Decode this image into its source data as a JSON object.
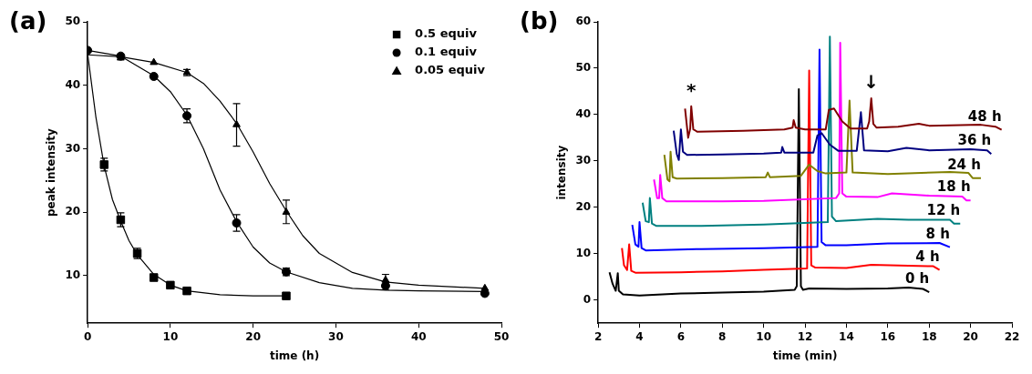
{
  "chart_data": [
    {
      "type": "scatter",
      "title": "(a)",
      "xlabel": "time (h)",
      "ylabel": "peak intensity",
      "xlim": [
        0,
        50
      ],
      "xticks": [
        0,
        10,
        20,
        30,
        40,
        50
      ],
      "ylim": [
        2.5,
        50
      ],
      "yticks": [
        10,
        20,
        30,
        40,
        50
      ],
      "grid": false,
      "legend": "top right",
      "series": [
        {
          "name": "0.5 equiv",
          "type": "scatter",
          "marker": "square",
          "color": "#000000",
          "x": [
            2,
            4,
            6,
            8,
            10,
            12,
            24
          ],
          "values": [
            27.5,
            18.8,
            13.5,
            9.7,
            8.5,
            7.6,
            6.8
          ],
          "errors": [
            1.0,
            1.1,
            0.8,
            null,
            null,
            null,
            null
          ]
        },
        {
          "name": "0.1 equiv",
          "type": "scatter",
          "marker": "circle",
          "color": "#000000",
          "x": [
            0,
            4,
            8,
            12,
            18,
            24,
            36,
            48
          ],
          "values": [
            45.5,
            44.6,
            41.4,
            35.2,
            18.3,
            10.6,
            8.4,
            7.2
          ],
          "errors": [
            null,
            null,
            null,
            1.1,
            1.3,
            0.6,
            0.6,
            null
          ]
        },
        {
          "name": "0.05 equiv",
          "type": "scatter",
          "marker": "triangle",
          "color": "#000000",
          "x": [
            4,
            8,
            12,
            18,
            24,
            36,
            48
          ],
          "values": [
            44.3,
            43.6,
            42.0,
            33.8,
            20.0,
            9.3,
            8.0
          ],
          "errors": [
            null,
            null,
            0.5,
            [
              30.4,
              37.1
            ],
            [
              18.2,
              21.9
            ],
            0.9,
            null
          ]
        },
        {
          "type": "line",
          "marker": "none",
          "color": "#000000",
          "x": [
            0,
            1,
            2,
            3,
            4,
            5,
            6,
            8,
            10,
            12,
            16,
            20,
            24
          ],
          "values": [
            45,
            35,
            27.3,
            22,
            18.6,
            15.5,
            13.3,
            10.2,
            8.5,
            7.6,
            7.0,
            6.8,
            6.8
          ]
        },
        {
          "type": "line",
          "marker": "none",
          "color": "#000000",
          "x": [
            0,
            4,
            8,
            10,
            12,
            14,
            16,
            18,
            20,
            22,
            24,
            28,
            32,
            36,
            40,
            48
          ],
          "values": [
            45.5,
            44.6,
            41.5,
            39,
            35.3,
            30,
            23.5,
            18.5,
            14.5,
            12,
            10.6,
            8.9,
            8.0,
            7.7,
            7.6,
            7.5
          ]
        },
        {
          "type": "line",
          "marker": "none",
          "color": "#000000",
          "x": [
            0,
            4,
            8,
            12,
            14,
            16,
            18,
            20,
            22,
            24,
            26,
            28,
            32,
            36,
            40,
            48
          ],
          "values": [
            44.8,
            44.5,
            43.6,
            42.0,
            40.3,
            37.5,
            34,
            29.5,
            24.5,
            20.2,
            16.3,
            13.5,
            10.5,
            9.0,
            8.5,
            8.0
          ]
        }
      ]
    },
    {
      "type": "line",
      "title": "(b)",
      "xlabel": "time (min)",
      "ylabel": "intensity",
      "xlim": [
        2,
        22
      ],
      "xticks": [
        2,
        4,
        6,
        8,
        10,
        12,
        14,
        16,
        18,
        20,
        22
      ],
      "ylim": [
        -5,
        60
      ],
      "yticks": [
        0,
        10,
        20,
        30,
        40,
        50,
        60
      ],
      "grid": false,
      "legend": false,
      "marker": "none",
      "annotations": [
        {
          "text": "*",
          "x": 6.5,
          "y": 41.8
        },
        {
          "text": "↓",
          "x": 15.2,
          "y": 43.5
        }
      ],
      "series": [
        {
          "name": "0 h",
          "color": "#000000",
          "x": [
            2.55,
            2.7,
            2.85,
            2.95,
            3.0,
            3.2,
            4,
            6,
            8,
            10,
            11.5,
            11.6,
            11.7,
            11.8,
            11.9,
            12.2,
            14,
            16,
            17,
            17.7,
            18.0
          ],
          "values": [
            6,
            3.5,
            2.0,
            5.8,
            2,
            1.2,
            1.0,
            1.4,
            1.6,
            1.8,
            2.2,
            3,
            45.5,
            3,
            2.2,
            2.5,
            2.4,
            2.5,
            2.7,
            2.4,
            1.7
          ]
        },
        {
          "name": "4 h",
          "color": "#ff0000",
          "x": [
            3.15,
            3.25,
            3.4,
            3.5,
            3.6,
            3.8,
            6,
            8,
            10,
            12.1,
            12.2,
            12.3,
            12.5,
            14,
            15.2,
            17,
            18.2,
            18.5
          ],
          "values": [
            11.2,
            7.5,
            6.5,
            12,
            6.3,
            5.9,
            6,
            6.2,
            6.5,
            6.8,
            49.5,
            7.5,
            7,
            6.9,
            7.6,
            7.4,
            7.3,
            6.5
          ]
        },
        {
          "name": "8 h",
          "color": "#0000ff",
          "x": [
            3.65,
            3.8,
            3.95,
            4.0,
            4.1,
            4.3,
            7,
            10,
            12.6,
            12.7,
            12.8,
            13,
            14,
            16,
            18.5,
            19
          ],
          "values": [
            16.2,
            12,
            11.5,
            16.8,
            11.2,
            10.7,
            11,
            11.2,
            11.5,
            54,
            12.5,
            11.8,
            11.8,
            12.2,
            12.3,
            11.4
          ]
        },
        {
          "name": "12 h",
          "color": "#008080",
          "x": [
            4.15,
            4.3,
            4.45,
            4.5,
            4.6,
            4.8,
            7,
            10,
            13.1,
            13.2,
            13.3,
            13.5,
            15.5,
            17,
            19,
            19.2,
            19.5
          ],
          "values": [
            21,
            17,
            16.8,
            22,
            16.5,
            16,
            16,
            16.3,
            16.8,
            56.8,
            18,
            17,
            17.5,
            17.3,
            17.3,
            16.5,
            16.5
          ]
        },
        {
          "name": "18 h",
          "color": "#ff00ff",
          "x": [
            4.7,
            4.85,
            4.95,
            5.0,
            5.1,
            5.3,
            8,
            10,
            13.5,
            13.65,
            13.7,
            13.8,
            14,
            15.5,
            16.2,
            18,
            19.6,
            19.8,
            20
          ],
          "values": [
            26,
            22,
            22,
            27,
            22,
            21.3,
            21.3,
            21.4,
            22,
            23,
            55.5,
            23,
            22.3,
            22.2,
            23,
            22.5,
            22.3,
            21.5,
            21.5
          ]
        },
        {
          "name": "24 h",
          "color": "#808000",
          "x": [
            5.2,
            5.35,
            5.45,
            5.5,
            5.6,
            5.8,
            8,
            10.1,
            10.2,
            10.3,
            11.8,
            12.2,
            12.6,
            13,
            14,
            14.15,
            14.3,
            16,
            19,
            19.9,
            20.1,
            20.5
          ],
          "values": [
            31.3,
            26,
            25.6,
            32,
            26.5,
            26.2,
            26.3,
            26.5,
            27.5,
            26.5,
            26.8,
            29.2,
            27.8,
            27.3,
            27.5,
            43,
            27.5,
            27.2,
            27.6,
            27.4,
            26.3,
            26.3
          ]
        },
        {
          "name": "36 h",
          "color": "#000080",
          "x": [
            5.65,
            5.8,
            5.9,
            6.0,
            6.1,
            6.3,
            8,
            10,
            10.85,
            10.9,
            11,
            12.4,
            12.6,
            12.8,
            13.2,
            13.6,
            14.5,
            14.7,
            14.85,
            16,
            16.9,
            18,
            20,
            20.8,
            21.0
          ],
          "values": [
            36.5,
            31.5,
            30.2,
            36.8,
            32,
            31.3,
            31.4,
            31.6,
            31.8,
            33,
            31.8,
            31.8,
            35.5,
            36,
            33.5,
            32.2,
            32.2,
            40.5,
            32.3,
            32.1,
            32.8,
            32.3,
            32.5,
            32.3,
            31.5
          ]
        },
        {
          "name": "48 h",
          "color": "#800000",
          "x": [
            6.2,
            6.35,
            6.45,
            6.5,
            6.6,
            6.8,
            9,
            11,
            11.4,
            11.45,
            11.55,
            12,
            13,
            13.15,
            13.4,
            13.8,
            14.2,
            15,
            15.1,
            15.2,
            15.3,
            15.45,
            16.5,
            17.5,
            18,
            20.5,
            21.2,
            21.5
          ],
          "values": [
            41.3,
            35,
            37,
            41.8,
            36.8,
            36.3,
            36.5,
            36.8,
            37.2,
            38.8,
            37.2,
            36.8,
            36.8,
            41,
            41.3,
            38.5,
            37,
            37,
            38.5,
            43.5,
            38,
            37.2,
            37.4,
            38,
            37.6,
            37.8,
            37.4,
            36.7
          ]
        }
      ]
    }
  ]
}
